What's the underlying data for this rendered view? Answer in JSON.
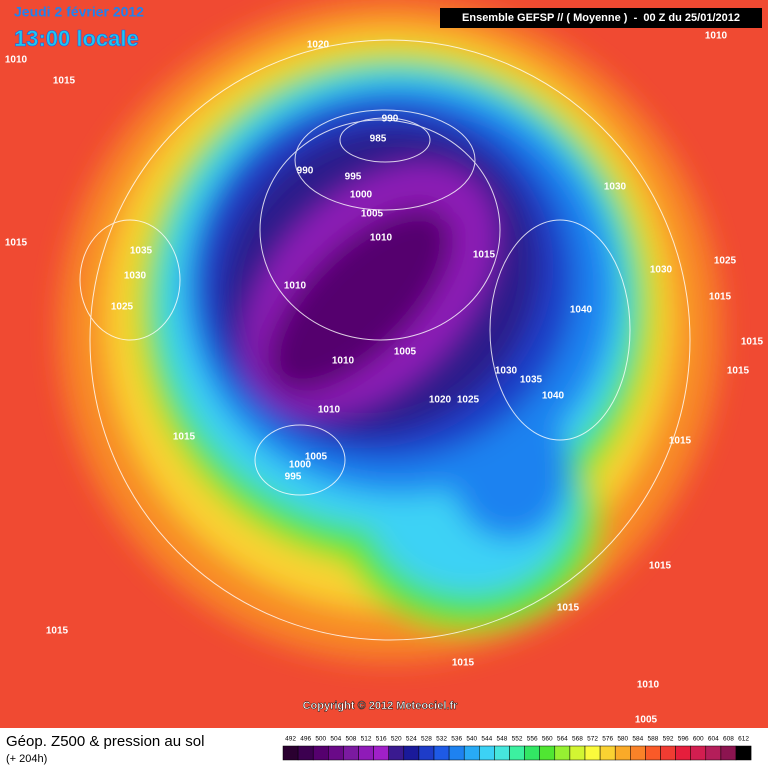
{
  "header": {
    "date": "Jeudi 2 février 2012",
    "time": "13:00 locale",
    "model": "Ensemble GEFSP // ( Moyenne )  -  00 Z du 25/01/2012"
  },
  "isobar_labels": [
    "1020",
    "1010",
    "1010",
    "1015",
    "990",
    "985",
    "990",
    "995",
    "1000",
    "1005",
    "1010",
    "1030",
    "1015",
    "1035",
    "1015",
    "1030",
    "1030",
    "1025",
    "1010",
    "1025",
    "1015",
    "1040",
    "1005",
    "1010",
    "1015",
    "1030",
    "1015",
    "1035",
    "1040",
    "1020",
    "1025",
    "1010",
    "1015",
    "1015",
    "1005",
    "1000",
    "995",
    "1015",
    "1015",
    "1015",
    "1015",
    "1010",
    "1005"
  ],
  "copyright": "Copyright © 2012 Meteociel.fr",
  "footer": {
    "title": "Géop. Z500 & pression au sol",
    "subtitle": "(+ 204h)"
  },
  "colorbar": {
    "ticks": [
      492,
      496,
      500,
      504,
      508,
      512,
      516,
      520,
      524,
      528,
      532,
      536,
      540,
      544,
      548,
      552,
      556,
      560,
      564,
      568,
      572,
      576,
      580,
      584,
      588,
      592,
      596,
      600,
      604,
      608,
      612
    ],
    "colors": [
      "#2a0030",
      "#3c0050",
      "#55006e",
      "#6a0a88",
      "#7b1aa0",
      "#8f1bb8",
      "#a020c8",
      "#3a1a90",
      "#1a1a9a",
      "#1e3cc8",
      "#1e5ae6",
      "#1e82f0",
      "#28aaf5",
      "#3cd2f5",
      "#46e6dc",
      "#3cf0a0",
      "#32e664",
      "#50e632",
      "#96f032",
      "#d2f532",
      "#fafa3c",
      "#fad232",
      "#faaa28",
      "#fa8228",
      "#fa5a28",
      "#f03c32",
      "#e61e3c",
      "#d21e50",
      "#b41e5a",
      "#8c1450",
      "#000000"
    ]
  }
}
